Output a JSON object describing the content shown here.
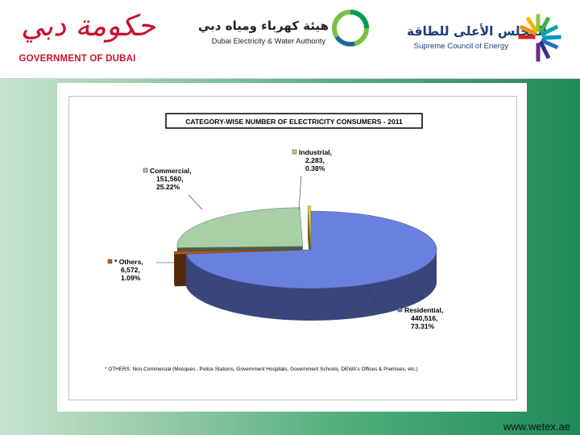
{
  "header": {
    "government": {
      "arabic": "حكومة دبي",
      "english": "GOVERNMENT OF DUBAI",
      "color": "#c8102e"
    },
    "dewa": {
      "arabic": "هيئة كهرباء ومياه دبي",
      "english": "Dubai Electricity & Water Authority",
      "icon": "dewa-ring-icon"
    },
    "sce": {
      "arabic": "المجلس الأعلى للطاقة",
      "english": "Supreme Council of Energy",
      "icon": "sce-sunburst-icon"
    }
  },
  "chart_data": {
    "type": "pie",
    "title": "CATEGORY-WISE NUMBER OF ELECTRICITY CONSUMERS - 2011",
    "three_d": true,
    "legend": "labels beside slices",
    "slices": [
      {
        "name": "Residential",
        "value": 440516,
        "value_label": "440,516,",
        "percent": 73.31,
        "percent_label": "73.31%",
        "color": "#6a80df"
      },
      {
        "name": "Others",
        "prefix": "*",
        "value": 6572,
        "value_label": "6,572,",
        "percent": 1.09,
        "percent_label": "1.09%",
        "color": "#b85c17"
      },
      {
        "name": "Commercial",
        "value": 151560,
        "value_label": "151,560,",
        "percent": 25.22,
        "percent_label": "25.22%",
        "color": "#a8cfa5"
      },
      {
        "name": "Industrial",
        "value": 2283,
        "value_label": "2,283,",
        "percent": 0.38,
        "percent_label": "0.38%",
        "color": "#d8d25a"
      }
    ],
    "footnote": "* OTHERS: Non-Commercial (Mosques , Police Stations, Government Hospitals, Government Schools, DEWA's Offices & Premises, etc.)"
  },
  "footer": {
    "url": "www.wetex.ae"
  }
}
